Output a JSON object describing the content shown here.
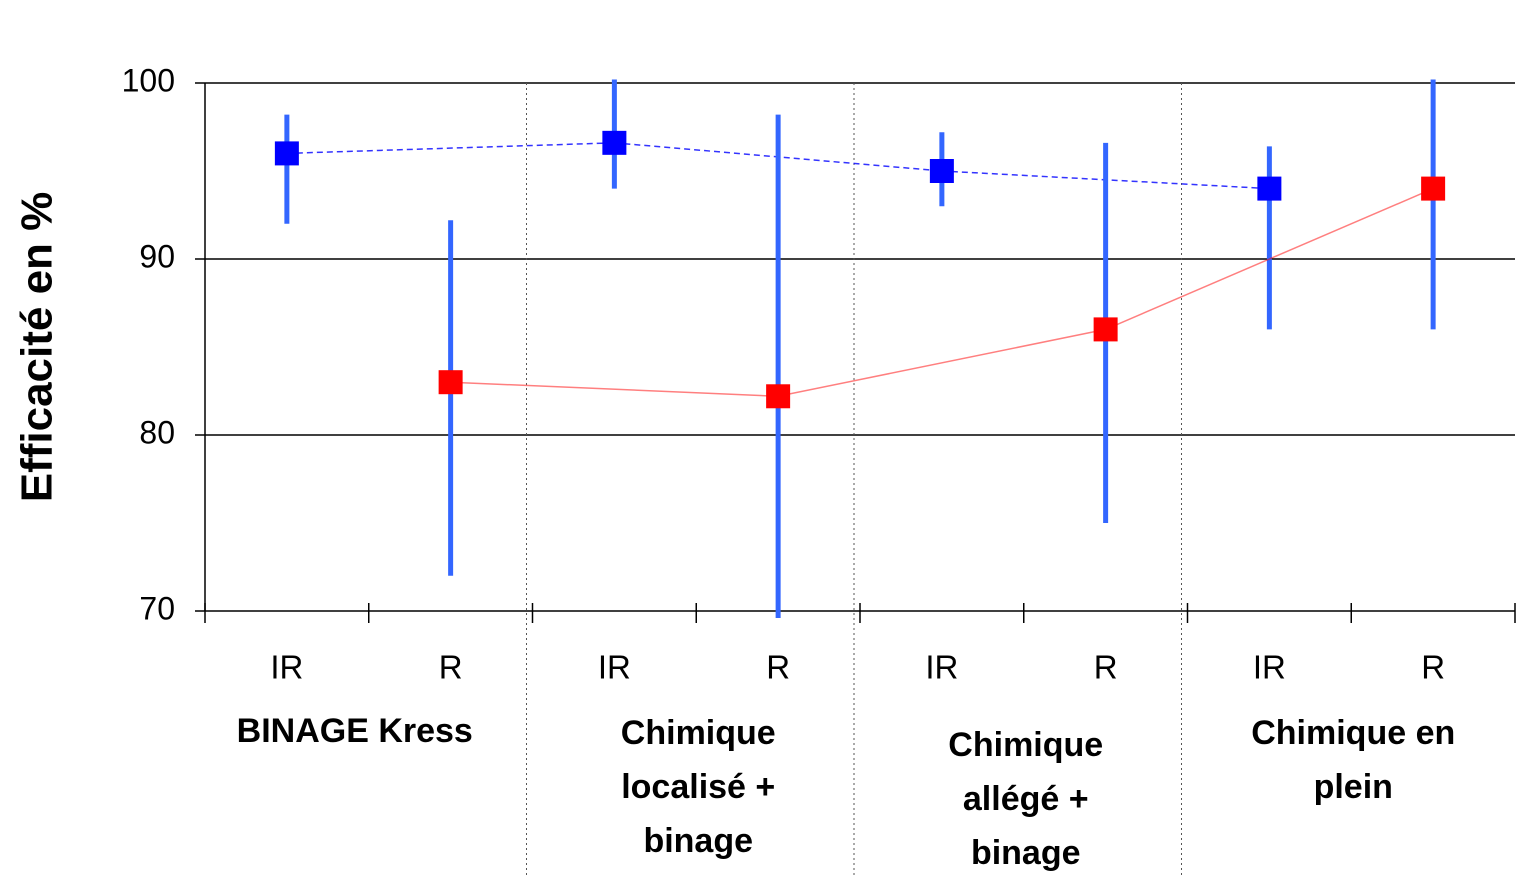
{
  "chart_data": {
    "type": "errorbar",
    "y_label": "Efficacité en %",
    "categories": [
      "IR",
      "R",
      "IR",
      "R",
      "IR",
      "R",
      "IR",
      "R"
    ],
    "groups": [
      [
        "BINAGE Kress"
      ],
      [
        "Chimique",
        "localisé +",
        "binage"
      ],
      [
        "Chimique",
        "allégé +",
        "binage"
      ],
      [
        "Chimique en",
        "plein"
      ]
    ],
    "series": [
      {
        "color": "#0000ff",
        "line_style": "dashed",
        "values": [
          96,
          null,
          96.6,
          null,
          95,
          null,
          94,
          null
        ],
        "lower": [
          92,
          null,
          94,
          null,
          93,
          null,
          86,
          null
        ],
        "upper": [
          98.2,
          null,
          100.2,
          null,
          97.2,
          null,
          96.4,
          null
        ]
      },
      {
        "color": "#ff0000",
        "line_style": "solid",
        "values": [
          null,
          83,
          null,
          82.2,
          null,
          86,
          null,
          94
        ],
        "lower": [
          null,
          72,
          null,
          69.6,
          null,
          75,
          null,
          86
        ],
        "upper": [
          null,
          92.2,
          null,
          98.2,
          null,
          96.6,
          null,
          100.2
        ]
      }
    ],
    "error_color": "#3366ff",
    "ylim": [
      70,
      100
    ],
    "yticks": [
      70,
      80,
      90,
      100
    ],
    "grid": true
  }
}
